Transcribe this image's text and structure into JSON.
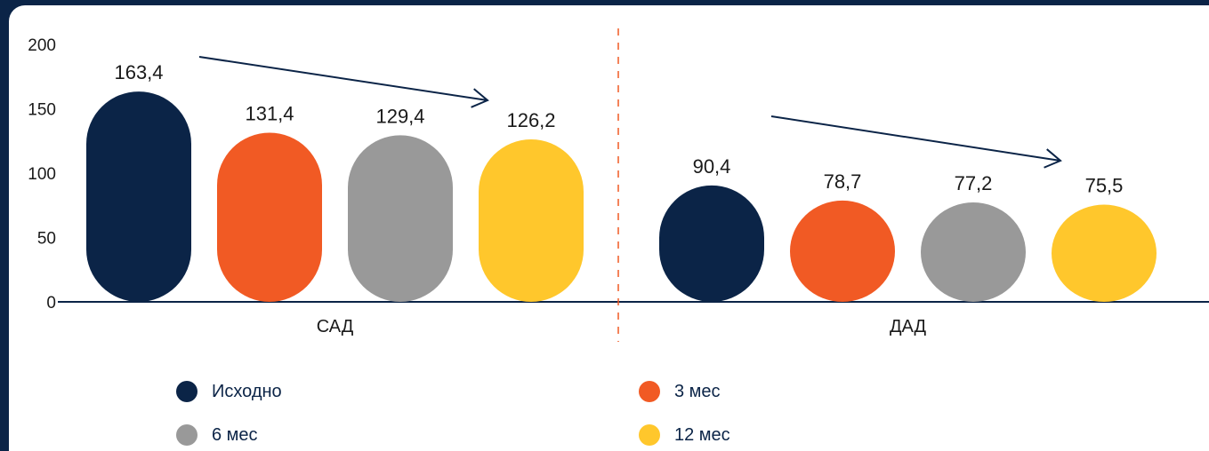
{
  "colors": {
    "background": "#0b2447",
    "axis": "#0b2447",
    "divider": "#f15a24",
    "arrow": "#0b2447"
  },
  "chart_data": {
    "type": "bar",
    "categories": [
      "САД",
      "ДАД"
    ],
    "series": [
      {
        "name": "Исходно",
        "color": "#0b2447",
        "values": [
          163.4,
          90.4
        ],
        "labels": [
          "163,4",
          "90,4"
        ]
      },
      {
        "name": "3 мес",
        "color": "#f15a24",
        "values": [
          131.4,
          78.7
        ],
        "labels": [
          "131,4",
          "78,7"
        ]
      },
      {
        "name": "6 мес",
        "color": "#999999",
        "values": [
          129.4,
          77.2
        ],
        "labels": [
          "129,4",
          "77,2"
        ]
      },
      {
        "name": "12 мес",
        "color": "#ffc72c",
        "values": [
          126.2,
          75.5
        ],
        "labels": [
          "126,2",
          "75,5"
        ]
      }
    ],
    "yticks": [
      0,
      50,
      100,
      150,
      200
    ],
    "ylim": [
      0,
      200
    ],
    "bar_shape": "rounded-pill",
    "trend_arrows": true,
    "group_divider": "dashed-vertical",
    "legend_position": "bottom"
  },
  "legend": [
    {
      "label": "Исходно",
      "color": "#0b2447"
    },
    {
      "label": "3 мес",
      "color": "#f15a24"
    },
    {
      "label": "6 мес",
      "color": "#999999"
    },
    {
      "label": "12 мес",
      "color": "#ffc72c"
    }
  ]
}
